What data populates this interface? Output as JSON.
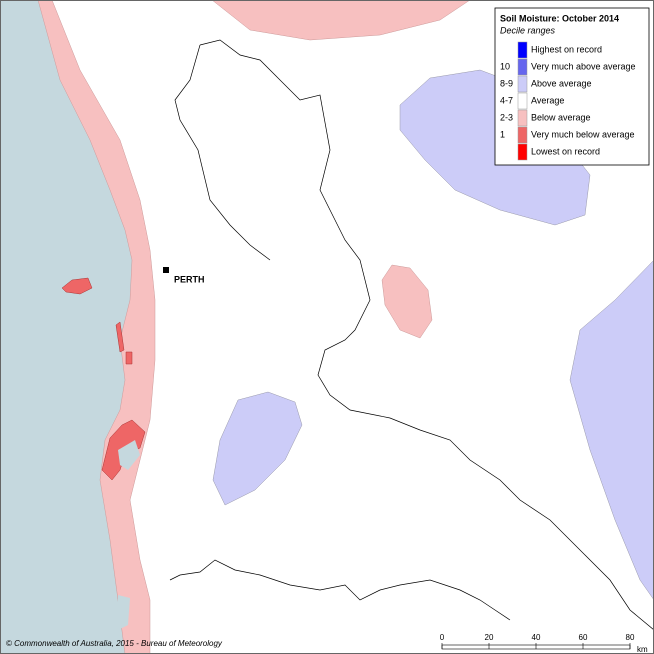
{
  "legend": {
    "title": "Soil Moisture: October 2014",
    "subtitle": "Decile ranges",
    "entries": [
      {
        "label": "Highest on record",
        "color": "#0000ff"
      },
      {
        "code": "10",
        "label": "Very much above average",
        "color": "#6666ee"
      },
      {
        "code": "8-9",
        "label": "Above average",
        "color": "#ccccf8"
      },
      {
        "code": "4-7",
        "label": "Average",
        "color": "#ffffff"
      },
      {
        "code": "2-3",
        "label": "Below average",
        "color": "#f7c0c0"
      },
      {
        "code": "1",
        "label": "Very much below average",
        "color": "#ee6666"
      },
      {
        "label": "Lowest on record",
        "color": "#ff0000"
      }
    ]
  },
  "place": "PERTH",
  "copyright": "© Commonwealth of Australia, 2015 - Bureau of Meteorology",
  "scale": {
    "ticks": [
      0,
      20,
      40,
      60,
      80
    ],
    "unit": "km"
  }
}
